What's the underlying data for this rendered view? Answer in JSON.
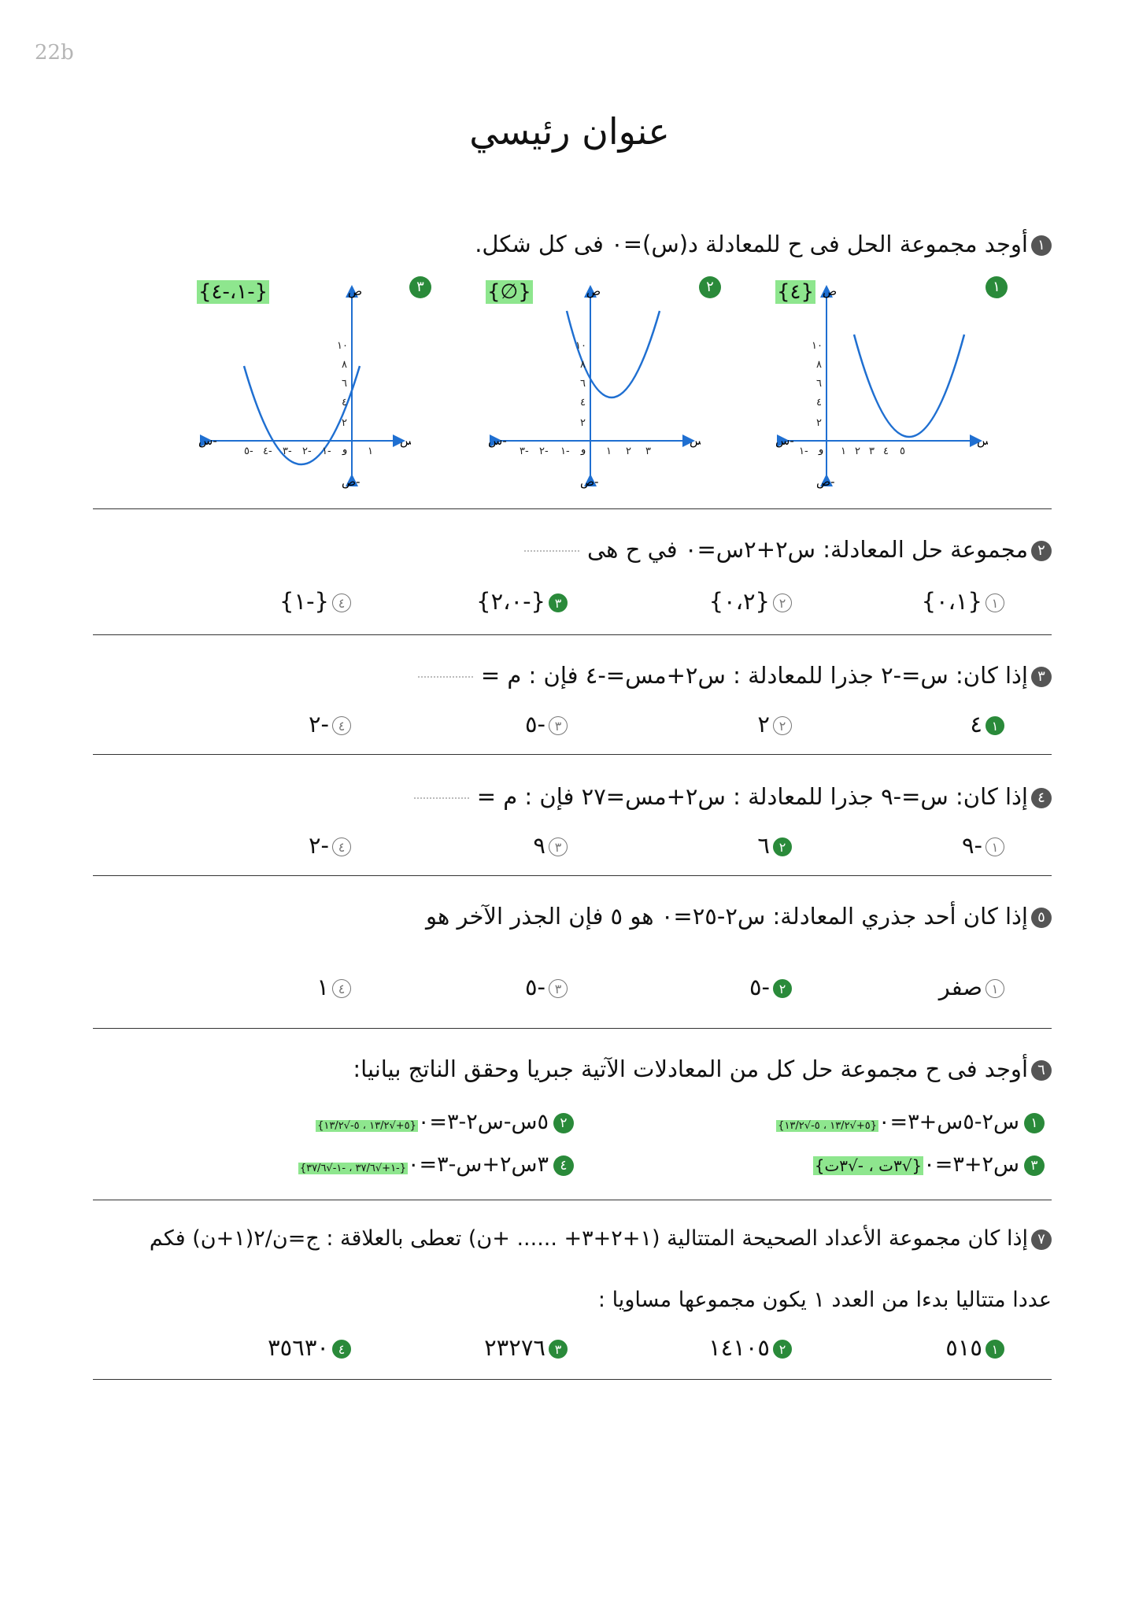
{
  "page_label": "22b",
  "title": "عنوان رئيسي",
  "q1": {
    "num": "١",
    "text": "أوجد مجموعة الحل فى ح للمعادلة د(س)=٠ فى كل شكل.",
    "graphs": [
      {
        "num": "١",
        "answer": "{٤}",
        "axis_y": "ص",
        "axis_x": "س",
        "axis_xn": "س-",
        "axis_yn": "ص-",
        "origin": "و"
      },
      {
        "num": "٢",
        "answer": "{∅}",
        "axis_y": "ص",
        "axis_x": "س",
        "axis_xn": "س-",
        "axis_yn": "ص-",
        "origin": "و"
      },
      {
        "num": "٣",
        "answer": "{-١،-٤}",
        "axis_y": "ص",
        "axis_x": "س",
        "axis_xn": "س-",
        "axis_yn": "ص-",
        "origin": "و"
      }
    ]
  },
  "q2": {
    "num": "٢",
    "text": "مجموعة حل المعادلة: س٢+٢س=٠ في ح هى",
    "options": [
      {
        "mark": "١",
        "text": "{٠،١}",
        "correct": false
      },
      {
        "mark": "٢",
        "text": "{٠،٢}",
        "correct": false
      },
      {
        "mark": "٣",
        "text": "{-٢،٠}",
        "correct": true
      },
      {
        "mark": "٤",
        "text": "{-١}",
        "correct": false
      }
    ]
  },
  "q3": {
    "num": "٣",
    "text": "إذا كان: س=-٢ جذرا للمعادلة : س٢+مس=-٤ فإن : م =",
    "options": [
      {
        "mark": "١",
        "text": "٤",
        "correct": true
      },
      {
        "mark": "٢",
        "text": "٢",
        "correct": false
      },
      {
        "mark": "٣",
        "text": "-٥",
        "correct": false
      },
      {
        "mark": "٤",
        "text": "-٢",
        "correct": false
      }
    ]
  },
  "q4": {
    "num": "٤",
    "text": "إذا كان: س=-٩ جذرا للمعادلة : س٢+مس=٢٧ فإن : م =",
    "options": [
      {
        "mark": "١",
        "text": "-٩",
        "correct": false
      },
      {
        "mark": "٢",
        "text": "٦",
        "correct": true
      },
      {
        "mark": "٣",
        "text": "٩",
        "correct": false
      },
      {
        "mark": "٤",
        "text": "-٢",
        "correct": false
      }
    ]
  },
  "q5": {
    "num": "٥",
    "text": "إذا كان أحد جذري المعادلة: س٢-٢٥=٠ هو ٥ فإن الجذر الآخر هو",
    "options": [
      {
        "mark": "١",
        "text": "صفر",
        "correct": false
      },
      {
        "mark": "٢",
        "text": "-٥",
        "correct": true
      },
      {
        "mark": "٣",
        "text": "-٥",
        "correct": false
      },
      {
        "mark": "٤",
        "text": "١",
        "correct": false
      }
    ]
  },
  "q6": {
    "num": "٦",
    "text": "أوجد فى ح مجموعة حل كل من المعادلات الآتية جبريا وحقق الناتج بيانيا:",
    "equations": [
      {
        "mark": "١",
        "eq": "س٢-٥س+٣=٠",
        "answer": "{٥+√١٣/٢ ، ٥-√١٣/٢}"
      },
      {
        "mark": "٢",
        "eq": "٥س-س٢-٣=٠",
        "answer": "{٥+√١٣/٢ ، ٥-√١٣/٢}"
      },
      {
        "mark": "٣",
        "eq": "س٢+٣=٠",
        "answer": "{√٣ت ، -√٣ت}"
      },
      {
        "mark": "٤",
        "eq": "٣س٢+س-٣=٠",
        "answer": "{-١+√٣٧/٦ ، -١-√٣٧/٦}"
      }
    ]
  },
  "q7": {
    "num": "٧",
    "text_line1": "إذا كان مجموعة الأعداد الصحيحة المتتالية (١+٢+٣+ ...... +ن) تعطى بالعلاقة : ج=ن/٢(١+ن) فكم",
    "text_line2": "عددا متتاليا بدءا من العدد ١ يكون مجموعها مساويا :",
    "options": [
      {
        "mark": "١",
        "text": "٥١٥",
        "hl": "٥",
        "correct": true
      },
      {
        "mark": "٢",
        "text": "١٤١٠٥",
        "hl": "١٤",
        "correct": true
      },
      {
        "mark": "٣",
        "text": "٢٣٢٧٦",
        "hl": "٢٣",
        "correct": true
      },
      {
        "mark": "٤",
        "text": "٣٥٦٣٠",
        "hl": "٣٥",
        "correct": true
      }
    ]
  }
}
